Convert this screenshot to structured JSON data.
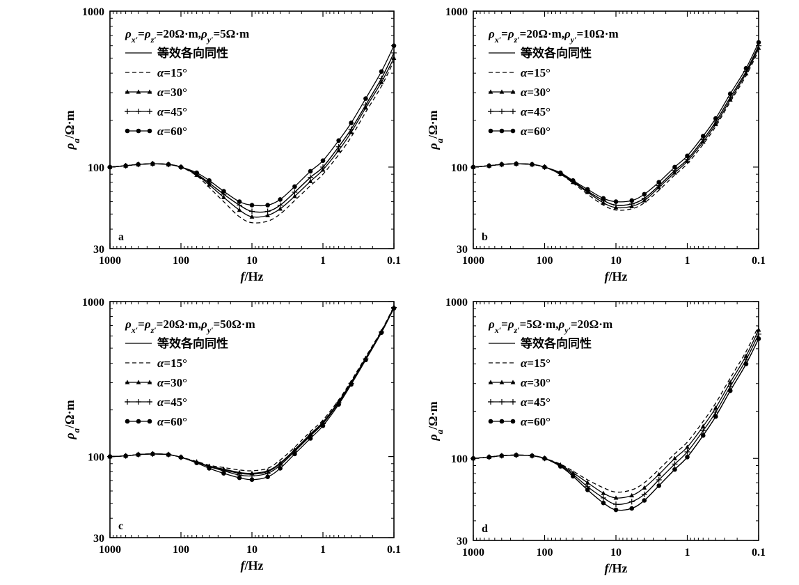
{
  "chart_data": [
    {
      "type": "line",
      "panel_label": "a",
      "title": "ρx′=ρz′=20Ω·m,ρy′=5Ω·m",
      "xlabel": "f/Hz",
      "ylabel": "ρa/Ω·m",
      "x_scale": "log",
      "x_reversed": true,
      "xlim": [
        1000,
        0.1
      ],
      "y_scale": "log",
      "ylim": [
        30,
        1000
      ],
      "x_ticks": [
        "1000",
        "100",
        "10",
        "1",
        "0.1"
      ],
      "y_ticks": [
        "30",
        "100",
        "1000"
      ],
      "grid": false,
      "legend_position": "top-left",
      "x": [
        1000,
        600,
        400,
        250,
        150,
        100,
        60,
        40,
        25,
        15,
        10,
        6,
        4,
        2.5,
        1.5,
        1,
        0.6,
        0.4,
        0.25,
        0.15,
        0.1
      ],
      "series": [
        {
          "name": "等效各向同性",
          "marker": "none",
          "line_style": "solid",
          "values": [
            100,
            102,
            104,
            105,
            104,
            100,
            90,
            79,
            67,
            57,
            52,
            52,
            57,
            69,
            86,
            100,
            135,
            175,
            250,
            370,
            540
          ]
        },
        {
          "name": "α=15°",
          "marker": "none",
          "line_style": "dashed",
          "values": [
            100,
            102,
            104,
            105,
            104,
            100,
            88,
            74,
            60,
            48,
            44,
            45,
            50,
            61,
            76,
            90,
            120,
            156,
            225,
            330,
            480
          ]
        },
        {
          "name": "α=30°",
          "marker": "triangle",
          "line_style": "solid",
          "values": [
            100,
            102,
            104,
            105,
            104,
            100,
            89,
            77,
            64,
            53,
            48,
            49,
            54,
            65,
            81,
            96,
            128,
            167,
            240,
            350,
            500
          ]
        },
        {
          "name": "α=45°",
          "marker": "plus",
          "line_style": "solid",
          "values": [
            100,
            102,
            104,
            105,
            104,
            100,
            90,
            79,
            67,
            57,
            52,
            52,
            57,
            69,
            86,
            100,
            135,
            175,
            250,
            370,
            540
          ]
        },
        {
          "name": "α=60°",
          "marker": "dot",
          "line_style": "solid",
          "values": [
            100,
            102,
            104,
            105,
            104,
            100,
            92,
            82,
            70,
            60,
            57,
            57,
            62,
            75,
            94,
            110,
            148,
            192,
            275,
            410,
            600
          ]
        }
      ]
    },
    {
      "type": "line",
      "panel_label": "b",
      "title": "ρx′=ρz′=20Ω·m,ρy′=10Ω·m",
      "xlabel": "f/Hz",
      "ylabel": "ρa/Ω·m",
      "x_scale": "log",
      "x_reversed": true,
      "xlim": [
        1000,
        0.1
      ],
      "y_scale": "log",
      "ylim": [
        30,
        1000
      ],
      "x_ticks": [
        "1000",
        "100",
        "10",
        "1",
        "0.1"
      ],
      "y_ticks": [
        "30",
        "100",
        "1000"
      ],
      "grid": false,
      "legend_position": "top-left",
      "x": [
        1000,
        600,
        400,
        250,
        150,
        100,
        60,
        40,
        25,
        15,
        10,
        6,
        4,
        2.5,
        1.5,
        1,
        0.6,
        0.4,
        0.25,
        0.15,
        0.1
      ],
      "series": [
        {
          "name": "等效各向同性",
          "marker": "none",
          "line_style": "solid",
          "values": [
            100,
            102,
            104,
            105,
            104,
            100,
            91,
            81,
            70,
            61,
            57,
            58,
            63,
            76,
            95,
            112,
            150,
            195,
            280,
            410,
            600
          ]
        },
        {
          "name": "α=15°",
          "marker": "none",
          "line_style": "dashed",
          "values": [
            100,
            102,
            104,
            105,
            104,
            100,
            90,
            79,
            67,
            57,
            53,
            54,
            59,
            71,
            89,
            105,
            140,
            182,
            262,
            385,
            560
          ]
        },
        {
          "name": "α=30°",
          "marker": "triangle",
          "line_style": "solid",
          "values": [
            100,
            102,
            104,
            105,
            104,
            100,
            90,
            80,
            69,
            59,
            55,
            56,
            61,
            74,
            92,
            109,
            145,
            188,
            270,
            398,
            580
          ]
        },
        {
          "name": "α=45°",
          "marker": "plus",
          "line_style": "solid",
          "values": [
            100,
            102,
            104,
            105,
            104,
            100,
            91,
            81,
            70,
            61,
            57,
            58,
            63,
            76,
            95,
            112,
            150,
            195,
            280,
            410,
            600
          ]
        },
        {
          "name": "α=60°",
          "marker": "dot",
          "line_style": "solid",
          "values": [
            100,
            102,
            104,
            105,
            104,
            100,
            92,
            82,
            72,
            63,
            60,
            61,
            67,
            80,
            100,
            118,
            158,
            205,
            295,
            430,
            630
          ]
        }
      ]
    },
    {
      "type": "line",
      "panel_label": "c",
      "title": "ρx′=ρz′=20Ω·m,ρy′=50Ω·m",
      "xlabel": "f/Hz",
      "ylabel": "ρa/Ω·m",
      "x_scale": "log",
      "x_reversed": true,
      "xlim": [
        1000,
        0.1
      ],
      "y_scale": "log",
      "ylim": [
        30,
        1000
      ],
      "x_ticks": [
        "1000",
        "100",
        "10",
        "1",
        "0.1"
      ],
      "y_ticks": [
        "30",
        "100",
        "1000"
      ],
      "grid": false,
      "legend_position": "top-left",
      "x": [
        1000,
        600,
        400,
        250,
        150,
        100,
        60,
        40,
        25,
        15,
        10,
        6,
        4,
        2.5,
        1.5,
        1,
        0.6,
        0.4,
        0.25,
        0.15,
        0.1
      ],
      "series": [
        {
          "name": "等效各向同性",
          "marker": "none",
          "line_style": "solid",
          "values": [
            100,
            101,
            103,
            104,
            103,
            99,
            92,
            86,
            82,
            78,
            77,
            80,
            90,
            110,
            138,
            165,
            225,
            300,
            430,
            640,
            920
          ]
        },
        {
          "name": "α=15°",
          "marker": "none",
          "line_style": "dashed",
          "values": [
            100,
            101,
            103,
            104,
            103,
            99,
            93,
            88,
            85,
            82,
            81,
            84,
            95,
            115,
            145,
            172,
            232,
            308,
            440,
            650,
            930
          ]
        },
        {
          "name": "α=30°",
          "marker": "triangle",
          "line_style": "solid",
          "values": [
            100,
            101,
            103,
            104,
            103,
            99,
            92,
            87,
            83,
            79,
            78,
            81,
            91,
            111,
            140,
            167,
            227,
            302,
            432,
            642,
            922
          ]
        },
        {
          "name": "α=45°",
          "marker": "plus",
          "line_style": "solid",
          "values": [
            100,
            101,
            103,
            104,
            103,
            99,
            92,
            86,
            81,
            76,
            75,
            78,
            88,
            108,
            136,
            163,
            222,
            297,
            427,
            637,
            915
          ]
        },
        {
          "name": "α=60°",
          "marker": "dot",
          "line_style": "solid",
          "values": [
            100,
            101,
            103,
            104,
            103,
            99,
            91,
            84,
            78,
            73,
            71,
            74,
            84,
            104,
            131,
            158,
            217,
            292,
            420,
            630,
            905
          ]
        }
      ]
    },
    {
      "type": "line",
      "panel_label": "d",
      "title": "ρx′=ρz′=5Ω·m,ρy′=20Ω·m",
      "xlabel": "f/Hz",
      "ylabel": "ρa/Ω·m",
      "x_scale": "log",
      "x_reversed": true,
      "xlim": [
        1000,
        0.1
      ],
      "y_scale": "log",
      "ylim": [
        30,
        1000
      ],
      "x_ticks": [
        "1000",
        "100",
        "10",
        "1",
        "0.1"
      ],
      "y_ticks": [
        "30",
        "100",
        "1000"
      ],
      "grid": false,
      "legend_position": "top-left",
      "x": [
        1000,
        600,
        400,
        250,
        150,
        100,
        60,
        40,
        25,
        15,
        10,
        6,
        4,
        2.5,
        1.5,
        1,
        0.6,
        0.4,
        0.25,
        0.15,
        0.1
      ],
      "series": [
        {
          "name": "等效各向同性",
          "marker": "none",
          "line_style": "solid",
          "values": [
            100,
            102,
            104,
            105,
            104,
            100,
            89,
            77,
            63,
            52,
            47,
            48,
            54,
            67,
            85,
            102,
            140,
            185,
            270,
            400,
            580
          ]
        },
        {
          "name": "α=15°",
          "marker": "none",
          "line_style": "dashed",
          "values": [
            100,
            102,
            104,
            105,
            104,
            100,
            92,
            83,
            73,
            65,
            61,
            63,
            70,
            85,
            107,
            127,
            172,
            225,
            325,
            480,
            700
          ]
        },
        {
          "name": "α=30°",
          "marker": "triangle",
          "line_style": "solid",
          "values": [
            100,
            102,
            104,
            105,
            104,
            100,
            91,
            81,
            70,
            60,
            56,
            58,
            65,
            79,
            100,
            118,
            160,
            210,
            305,
            450,
            660
          ]
        },
        {
          "name": "α=45°",
          "marker": "plus",
          "line_style": "solid",
          "values": [
            100,
            102,
            104,
            105,
            104,
            100,
            90,
            79,
            66,
            56,
            51,
            53,
            59,
            73,
            92,
            110,
            150,
            197,
            287,
            425,
            620
          ]
        },
        {
          "name": "α=60°",
          "marker": "dot",
          "line_style": "solid",
          "values": [
            100,
            102,
            104,
            105,
            104,
            100,
            89,
            77,
            63,
            52,
            47,
            48,
            54,
            67,
            85,
            102,
            140,
            185,
            270,
            400,
            580
          ]
        }
      ]
    }
  ]
}
